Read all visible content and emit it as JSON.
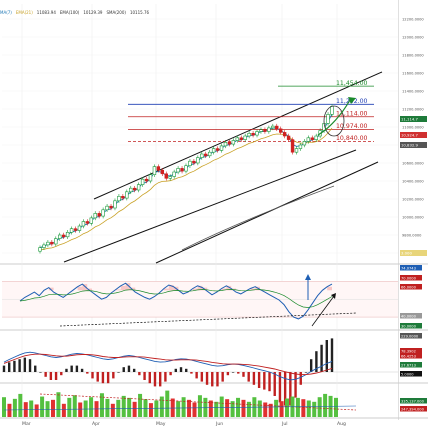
{
  "header": {
    "indicators": [
      {
        "name": "MA(7)",
        "value": "",
        "color": "#1f77b4"
      },
      {
        "name": "EMA(21)",
        "value": "11083.94",
        "color": "#c9a227"
      },
      {
        "name": "EMA(100)",
        "value": "10129.39",
        "color": "#333333"
      },
      {
        "name": "SMA(200)",
        "value": "10115.76",
        "color": "#555555"
      }
    ]
  },
  "price_axis": {
    "ticks": [
      "12200.0000",
      "12000.0000",
      "11800.0000",
      "11600.0000",
      "11400.0000",
      "11200.0000",
      "11000.0000",
      "10800.0000",
      "10600.0000",
      "10400.0000",
      "10200.0000",
      "10000.0000",
      "9800.0000",
      "9600.0000"
    ],
    "tags": [
      {
        "label": "11,114.7",
        "color": "#1e7b3a"
      },
      {
        "label": "10,924.7",
        "color": "#d03030"
      },
      {
        "label": "10,832.9",
        "color": "#555555"
      },
      {
        "label": "3.000",
        "color": "#e8d57a"
      }
    ]
  },
  "levels": [
    {
      "label": "11,454.00",
      "value": 11454,
      "color": "#1a8a2a"
    },
    {
      "label": "11,252.00",
      "value": 11252,
      "color": "#1f3fb4"
    },
    {
      "label": "11,114.00",
      "value": 11114,
      "color": "#c02020"
    },
    {
      "label": "10,974.00",
      "value": 10974,
      "color": "#c02020"
    },
    {
      "label": "10,840.00",
      "value": 10840,
      "color": "#c02020"
    }
  ],
  "rsi": {
    "axis_labels": [
      "74.0743",
      "70.0000",
      "66.0000",
      "40.0000",
      "30.0000"
    ],
    "tag_colors": [
      "#1f5fb4",
      "#c02020",
      "#c02020",
      "#999999",
      "#1e7b3a"
    ]
  },
  "macd": {
    "axis_labels": [
      "229.0000",
      "78.3902",
      "66.4253",
      "27.6713",
      "5.0000"
    ],
    "tag_colors": [
      "#555555",
      "#c02020",
      "#c02020",
      "#1e7b3a",
      "#111111"
    ]
  },
  "volume": {
    "axis_labels": [
      "335,137.000",
      "247,394.000"
    ],
    "tag_colors": [
      "#1e7b3a",
      "#c02020"
    ]
  },
  "time_axis": {
    "labels": [
      "Mar",
      "Apr",
      "May",
      "Jun",
      "Jul",
      "Aug"
    ]
  },
  "colors": {
    "up": "#1a9a3a",
    "down": "#d02020",
    "ma_fast": "#1f77b4",
    "ma_slow": "#c9a227",
    "channel": "#111111"
  },
  "chart_data": {
    "type": "candlestick",
    "y_range": [
      9500,
      12300
    ],
    "candles": [
      {
        "o": 9620,
        "c": 9660
      },
      {
        "o": 9660,
        "c": 9690
      },
      {
        "o": 9690,
        "c": 9720
      },
      {
        "o": 9720,
        "c": 9700
      },
      {
        "o": 9700,
        "c": 9760
      },
      {
        "o": 9760,
        "c": 9800
      },
      {
        "o": 9800,
        "c": 9780
      },
      {
        "o": 9780,
        "c": 9830
      },
      {
        "o": 9830,
        "c": 9870
      },
      {
        "o": 9870,
        "c": 9850
      },
      {
        "o": 9850,
        "c": 9900
      },
      {
        "o": 9900,
        "c": 9950
      },
      {
        "o": 9950,
        "c": 9930
      },
      {
        "o": 9930,
        "c": 9990
      },
      {
        "o": 9990,
        "c": 10040
      },
      {
        "o": 10040,
        "c": 10010
      },
      {
        "o": 10010,
        "c": 10080
      },
      {
        "o": 10080,
        "c": 10120
      },
      {
        "o": 10120,
        "c": 10100
      },
      {
        "o": 10100,
        "c": 10180
      },
      {
        "o": 10180,
        "c": 10230
      },
      {
        "o": 10230,
        "c": 10210
      },
      {
        "o": 10210,
        "c": 10280
      },
      {
        "o": 10280,
        "c": 10320
      },
      {
        "o": 10320,
        "c": 10300
      },
      {
        "o": 10300,
        "c": 10360
      },
      {
        "o": 10360,
        "c": 10420
      },
      {
        "o": 10420,
        "c": 10400
      },
      {
        "o": 10400,
        "c": 10470
      },
      {
        "o": 10470,
        "c": 10560
      },
      {
        "o": 10560,
        "c": 10520
      },
      {
        "o": 10520,
        "c": 10480
      },
      {
        "o": 10480,
        "c": 10430
      },
      {
        "o": 10430,
        "c": 10450
      },
      {
        "o": 10450,
        "c": 10500
      },
      {
        "o": 10500,
        "c": 10540
      },
      {
        "o": 10540,
        "c": 10510
      },
      {
        "o": 10510,
        "c": 10570
      },
      {
        "o": 10570,
        "c": 10620
      },
      {
        "o": 10620,
        "c": 10600
      },
      {
        "o": 10600,
        "c": 10660
      },
      {
        "o": 10660,
        "c": 10700
      },
      {
        "o": 10700,
        "c": 10680
      },
      {
        "o": 10680,
        "c": 10720
      },
      {
        "o": 10720,
        "c": 10760
      },
      {
        "o": 10760,
        "c": 10740
      },
      {
        "o": 10740,
        "c": 10790
      },
      {
        "o": 10790,
        "c": 10830
      },
      {
        "o": 10830,
        "c": 10810
      },
      {
        "o": 10810,
        "c": 10850
      },
      {
        "o": 10850,
        "c": 10880
      },
      {
        "o": 10880,
        "c": 10860
      },
      {
        "o": 10860,
        "c": 10900
      },
      {
        "o": 10900,
        "c": 10930
      },
      {
        "o": 10930,
        "c": 10910
      },
      {
        "o": 10910,
        "c": 10950
      },
      {
        "o": 10950,
        "c": 10970
      },
      {
        "o": 10970,
        "c": 10950
      },
      {
        "o": 10950,
        "c": 10990
      },
      {
        "o": 10990,
        "c": 11010
      },
      {
        "o": 11010,
        "c": 10980
      },
      {
        "o": 10980,
        "c": 10940
      },
      {
        "o": 10940,
        "c": 10900
      },
      {
        "o": 10900,
        "c": 10860
      },
      {
        "o": 10860,
        "c": 10720
      },
      {
        "o": 10720,
        "c": 10760
      },
      {
        "o": 10760,
        "c": 10800
      },
      {
        "o": 10800,
        "c": 10840
      },
      {
        "o": 10840,
        "c": 10880
      },
      {
        "o": 10880,
        "c": 10860
      },
      {
        "o": 10860,
        "c": 10900
      },
      {
        "o": 10900,
        "c": 10960
      },
      {
        "o": 10960,
        "c": 11040
      },
      {
        "o": 11040,
        "c": 11140
      },
      {
        "o": 11140,
        "c": 11230
      }
    ],
    "rsi": [
      48,
      52,
      55,
      58,
      54,
      60,
      63,
      58,
      55,
      52,
      56,
      60,
      64,
      67,
      62,
      58,
      54,
      50,
      52,
      57,
      61,
      65,
      68,
      63,
      58,
      55,
      52,
      50,
      53,
      57,
      62,
      66,
      64,
      60,
      56,
      58,
      62,
      65,
      63,
      59,
      55,
      58,
      62,
      65,
      62,
      58,
      56,
      59,
      62,
      64,
      61,
      58,
      55,
      52,
      49,
      44,
      36,
      30,
      28,
      31,
      38,
      46,
      54,
      60,
      64,
      67
    ],
    "macd": [
      30,
      38,
      45,
      52,
      58,
      60,
      58,
      54,
      50,
      46,
      44,
      46,
      50,
      54,
      56,
      55,
      52,
      48,
      44,
      40,
      38,
      40,
      44,
      48,
      50,
      48,
      44,
      40,
      36,
      32,
      30,
      31,
      34,
      38,
      40,
      39,
      36,
      32,
      28,
      24,
      20,
      18,
      19,
      22,
      24,
      23,
      20,
      16,
      12,
      8,
      4,
      0,
      -6,
      -14,
      -20,
      -24,
      -22,
      -16,
      -8,
      2,
      10,
      18,
      26,
      32
    ],
    "signal": [
      26,
      32,
      38,
      44,
      49,
      52,
      54,
      54,
      53,
      51,
      49,
      48,
      48,
      50,
      52,
      53,
      53,
      52,
      50,
      47,
      45,
      44,
      44,
      45,
      46,
      46,
      46,
      45,
      43,
      41,
      39,
      37,
      36,
      36,
      37,
      37,
      37,
      36,
      34,
      32,
      29,
      27,
      25,
      24,
      24,
      24,
      23,
      22,
      20,
      18,
      15,
      12,
      9,
      5,
      1,
      -3,
      -6,
      -8,
      -8,
      -6,
      -3,
      1,
      6,
      11
    ],
    "volume": [
      60,
      40,
      55,
      70,
      45,
      50,
      38,
      62,
      48,
      52,
      75,
      40,
      58,
      66,
      44,
      50,
      60,
      48,
      72,
      55,
      40,
      52,
      64,
      58,
      46,
      70,
      54,
      42,
      50,
      62,
      80,
      56,
      48,
      60,
      52,
      44,
      66,
      58,
      50,
      46,
      62,
      54,
      48,
      58,
      52,
      46,
      60,
      50,
      44,
      40,
      52,
      48,
      56,
      62,
      58,
      54,
      50,
      46,
      60,
      70,
      64,
      58
    ],
    "volume_up": [
      1,
      0,
      1,
      1,
      0,
      1,
      0,
      1,
      1,
      0,
      1,
      0,
      1,
      1,
      0,
      1,
      1,
      0,
      1,
      1,
      0,
      1,
      1,
      1,
      0,
      1,
      1,
      0,
      1,
      1,
      1,
      0,
      1,
      1,
      0,
      0,
      1,
      1,
      0,
      1,
      1,
      0,
      1,
      1,
      0,
      1,
      1,
      1,
      0,
      0,
      1,
      0,
      1,
      1,
      1,
      0,
      1,
      1,
      1,
      1,
      1,
      1
    ]
  }
}
